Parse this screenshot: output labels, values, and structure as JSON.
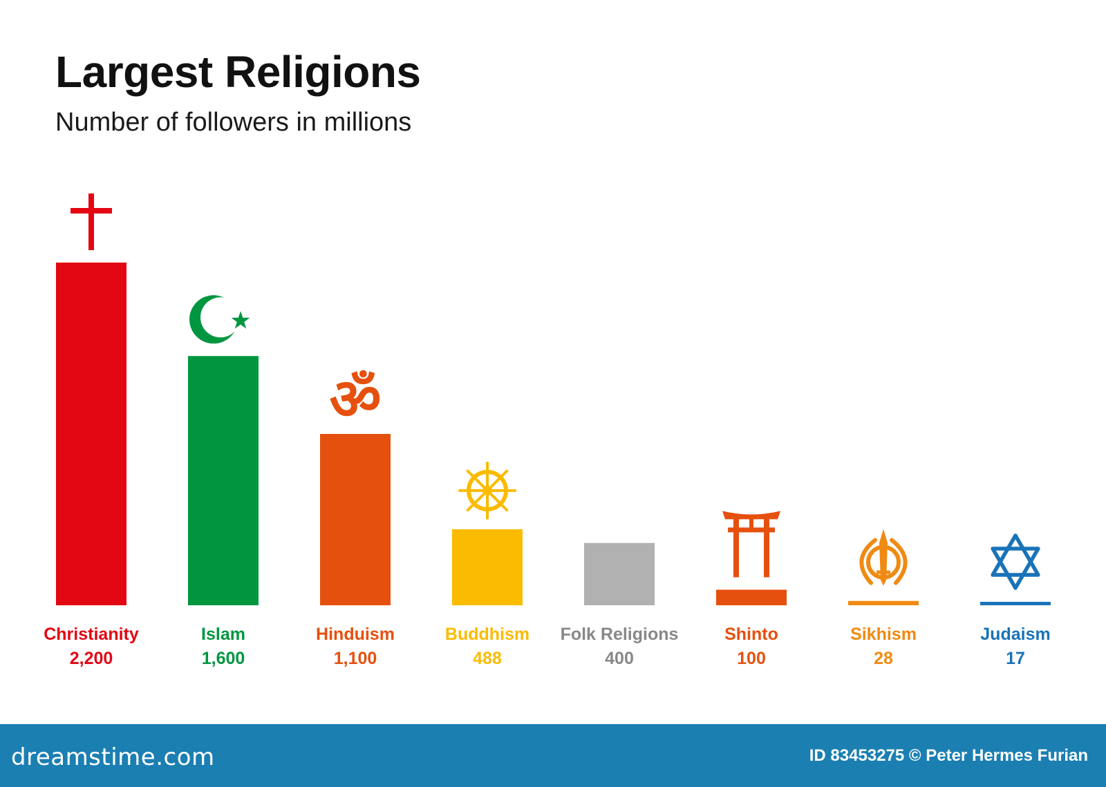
{
  "chart_data": {
    "type": "bar",
    "title": "Largest Religions",
    "subtitle": "Number of followers in millions",
    "xlabel": "",
    "ylabel": "",
    "ylim": [
      0,
      2200
    ],
    "grid": false,
    "legend": "none",
    "categories": [
      "Christianity",
      "Islam",
      "Hinduism",
      "Buddhism",
      "Folk Religions",
      "Shinto",
      "Sikhism",
      "Judaism"
    ],
    "values": [
      2200,
      1600,
      1100,
      488,
      400,
      100,
      28,
      17
    ],
    "value_labels": [
      "2,200",
      "1,600",
      "1,100",
      "488",
      "400",
      "100",
      "28",
      "17"
    ],
    "colors": [
      "#e30613",
      "#009640",
      "#e6500e",
      "#fbbb00",
      "#b1b1b1",
      "#e6500e",
      "#f08a12",
      "#1a73b8"
    ],
    "icons": [
      "cross-icon",
      "crescent-star-icon",
      "om-icon",
      "dharma-wheel-icon",
      "",
      "torii-gate-icon",
      "khanda-icon",
      "star-of-david-icon"
    ]
  },
  "footer": {
    "brand": "dreamstime.com",
    "credit": "ID 83453275 © Peter Hermes Furian"
  }
}
